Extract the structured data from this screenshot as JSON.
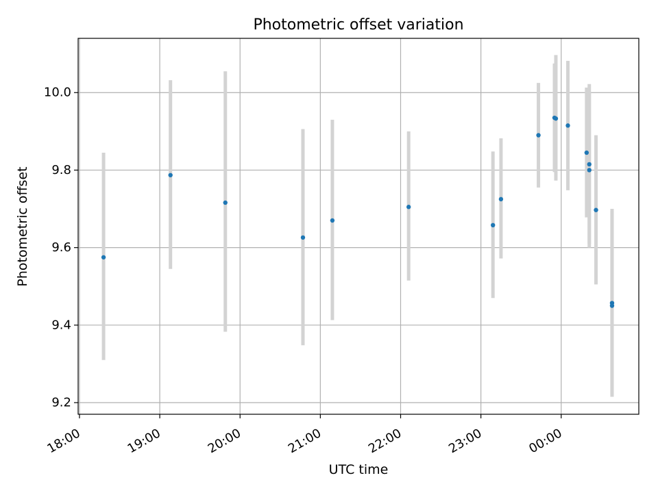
{
  "chart_data": {
    "type": "scatter",
    "title": "Photometric offset variation",
    "xlabel": "UTC time",
    "ylabel": "Photometric offset",
    "x_tick_labels": [
      "18:00",
      "19:00",
      "20:00",
      "21:00",
      "22:00",
      "23:00",
      "00:00"
    ],
    "x_ticks": [
      "18:00",
      "19:00",
      "20:00",
      "21:00",
      "22:00",
      "23:00",
      "24:00"
    ],
    "y_ticks": [
      9.2,
      9.4,
      9.6,
      9.8,
      10.0
    ],
    "y_tick_labels": [
      "9.2",
      "9.4",
      "9.6",
      "9.8",
      "10.0"
    ],
    "xlim": [
      "17:59",
      "24:58"
    ],
    "ylim": [
      9.17,
      10.14
    ],
    "grid": true,
    "marker_color": "#1f77b4",
    "errorbar_color": "#d3d3d3",
    "points": [
      {
        "x": "18:18",
        "y": 9.575,
        "yerr_low": 9.31,
        "yerr_high": 9.845
      },
      {
        "x": "19:08",
        "y": 9.787,
        "yerr_low": 9.545,
        "yerr_high": 10.032
      },
      {
        "x": "19:49",
        "y": 9.716,
        "yerr_low": 9.383,
        "yerr_high": 10.055
      },
      {
        "x": "20:47",
        "y": 9.626,
        "yerr_low": 9.348,
        "yerr_high": 9.906
      },
      {
        "x": "21:09",
        "y": 9.67,
        "yerr_low": 9.413,
        "yerr_high": 9.93
      },
      {
        "x": "22:06",
        "y": 9.705,
        "yerr_low": 9.515,
        "yerr_high": 9.9
      },
      {
        "x": "23:09",
        "y": 9.658,
        "yerr_low": 9.47,
        "yerr_high": 9.848
      },
      {
        "x": "23:15",
        "y": 9.725,
        "yerr_low": 9.572,
        "yerr_high": 9.882
      },
      {
        "x": "23:43",
        "y": 9.89,
        "yerr_low": 9.755,
        "yerr_high": 10.025
      },
      {
        "x": "23:55",
        "y": 9.935,
        "yerr_low": 9.795,
        "yerr_high": 10.075
      },
      {
        "x": "23:56",
        "y": 9.933,
        "yerr_low": 9.773,
        "yerr_high": 10.097
      },
      {
        "x": "24:05",
        "y": 9.915,
        "yerr_low": 9.748,
        "yerr_high": 10.082
      },
      {
        "x": "24:19",
        "y": 9.845,
        "yerr_low": 9.678,
        "yerr_high": 10.013
      },
      {
        "x": "24:21",
        "y": 9.815,
        "yerr_low": 9.61,
        "yerr_high": 10.022
      },
      {
        "x": "24:21",
        "y": 9.8,
        "yerr_low": 9.6,
        "yerr_high": 10.0
      },
      {
        "x": "24:26",
        "y": 9.697,
        "yerr_low": 9.505,
        "yerr_high": 9.89
      },
      {
        "x": "24:38",
        "y": 9.457,
        "yerr_low": 9.215,
        "yerr_high": 9.7
      },
      {
        "x": "24:38",
        "y": 9.45,
        "yerr_low": 9.22,
        "yerr_high": 9.695
      }
    ]
  }
}
